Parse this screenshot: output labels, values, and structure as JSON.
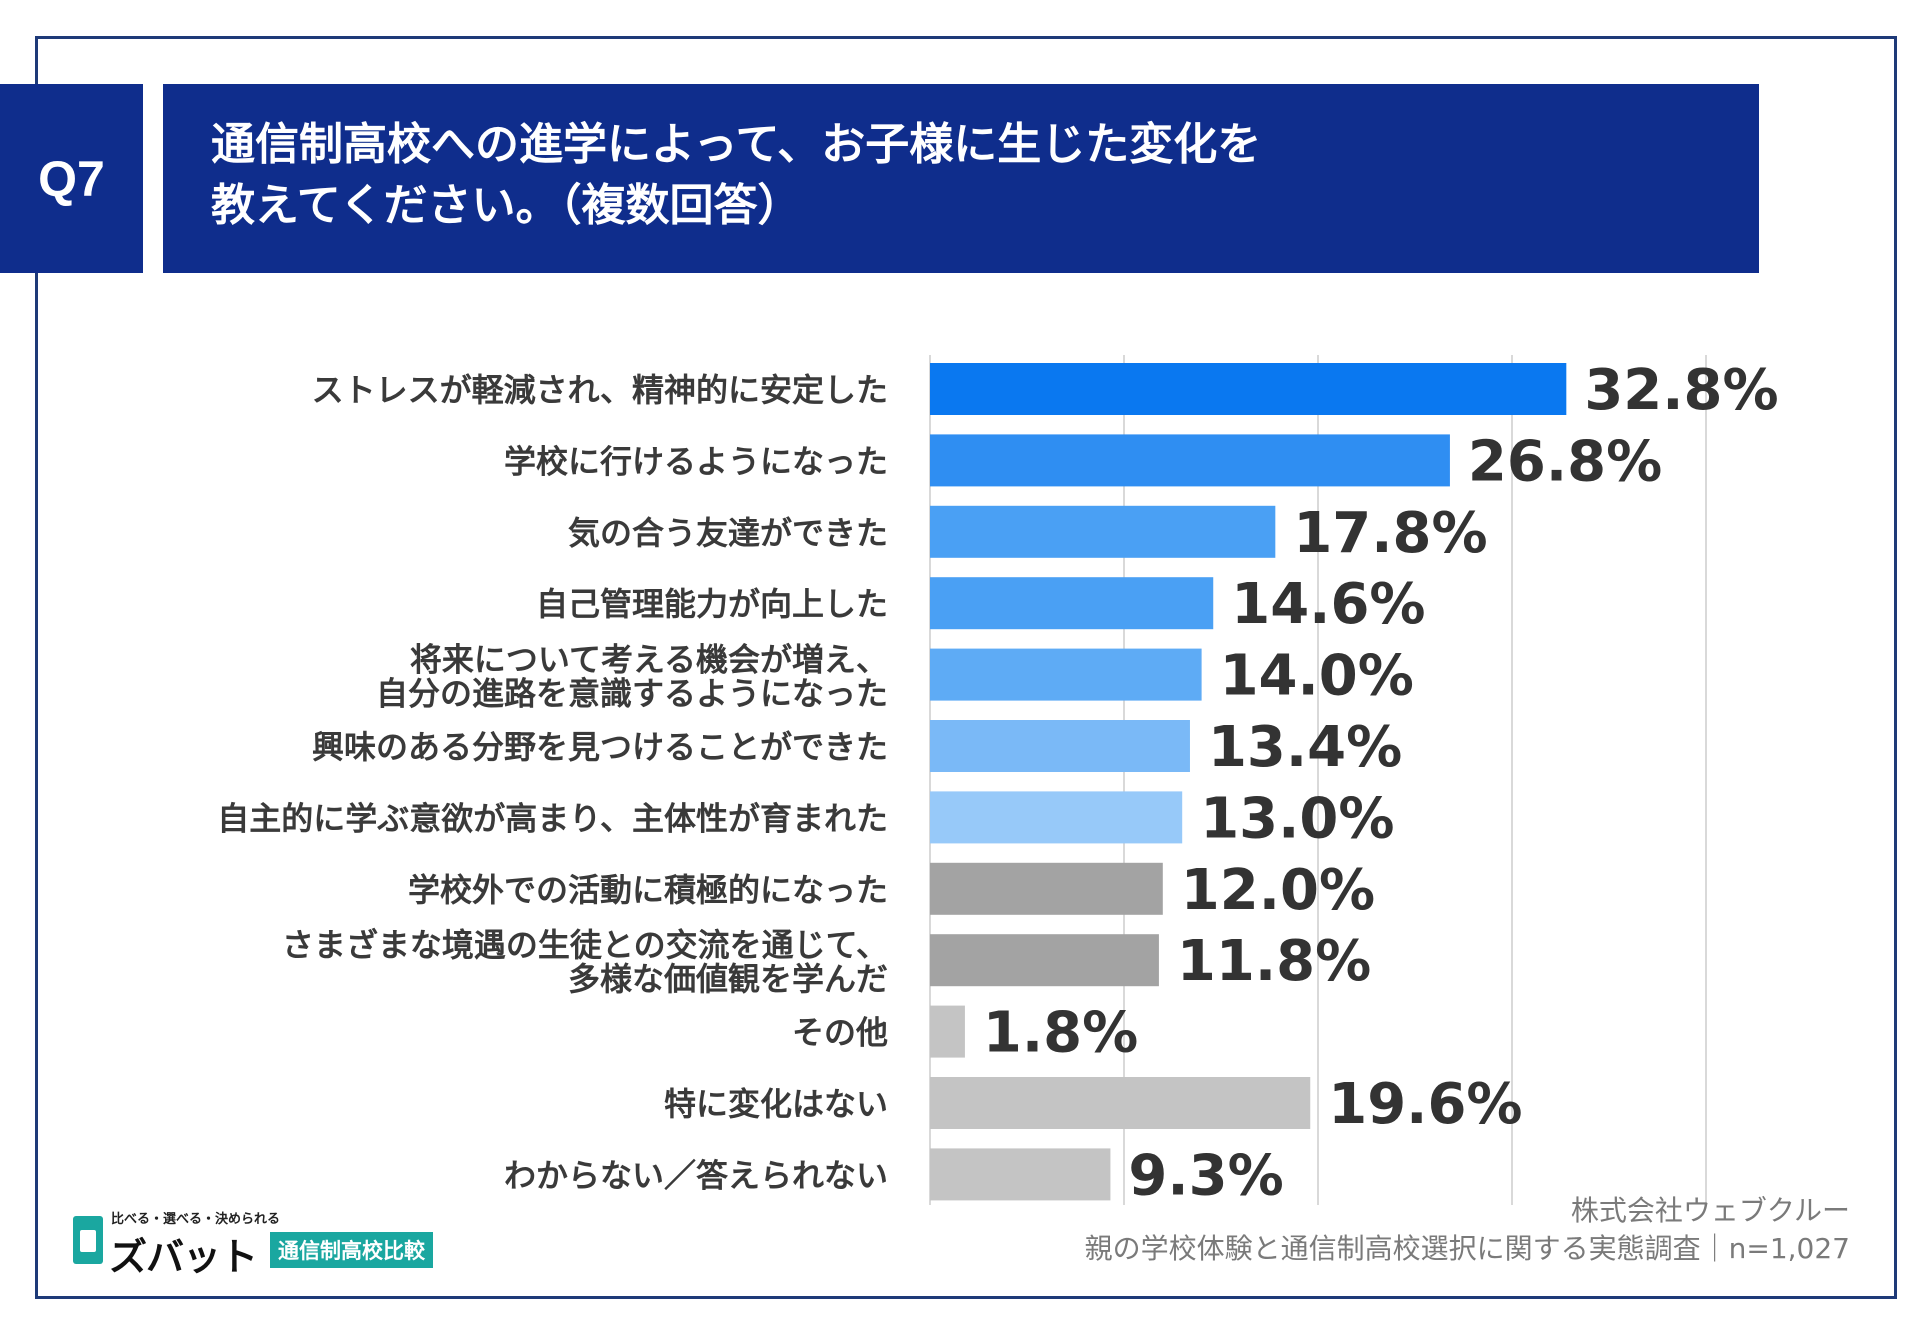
{
  "question": {
    "badge": "Q7",
    "title_line1": "通信制高校への進学によって、お子様に生じた変化を",
    "title_line2": "教えてください。（複数回答）"
  },
  "chart_data": {
    "type": "bar",
    "orientation": "horizontal",
    "title": "通信制高校への進学によって、お子様に生じた変化を教えてください。（複数回答）",
    "xlabel": "",
    "ylabel": "",
    "xlim": [
      0,
      40
    ],
    "grid": true,
    "unit": "%",
    "categories": [
      "ストレスが軽減され、精神的に安定した",
      "学校に行けるようになった",
      "気の合う友達ができた",
      "自己管理能力が向上した",
      "将来について考える機会が増え、自分の進路を意識するようになった",
      "興味のある分野を見つけることができた",
      "自主的に学ぶ意欲が高まり、主体性が育まれた",
      "学校外での活動に積極的になった",
      "さまざまな境遇の生徒との交流を通じて、多様な価値観を学んだ",
      "その他",
      "特に変化はない",
      "わからない／答えられない"
    ],
    "label_lines": [
      [
        "ストレスが軽減され、精神的に安定した"
      ],
      [
        "学校に行けるようになった"
      ],
      [
        "気の合う友達ができた"
      ],
      [
        "自己管理能力が向上した"
      ],
      [
        "将来について考える機会が増え、",
        "自分の進路を意識するようになった"
      ],
      [
        "興味のある分野を見つけることができた"
      ],
      [
        "自主的に学ぶ意欲が高まり、主体性が育まれた"
      ],
      [
        "学校外での活動に積極的になった"
      ],
      [
        "さまざまな境遇の生徒との交流を通じて、",
        "多様な価値観を学んだ"
      ],
      [
        "その他"
      ],
      [
        "特に変化はない"
      ],
      [
        "わからない／答えられない"
      ]
    ],
    "values": [
      32.8,
      26.8,
      17.8,
      14.6,
      14.0,
      13.4,
      13.0,
      12.0,
      11.8,
      1.8,
      19.6,
      9.3
    ],
    "value_labels": [
      "32.8%",
      "26.8%",
      "17.8%",
      "14.6%",
      "14.0%",
      "13.4%",
      "13.0%",
      "12.0%",
      "11.8%",
      "1.8%",
      "19.6%",
      "9.3%"
    ],
    "colors": [
      "#0a78f0",
      "#2f8ef2",
      "#4aa0f4",
      "#4aa0f4",
      "#5eabf5",
      "#7ab9f7",
      "#97c9f9",
      "#a3a3a3",
      "#a3a3a3",
      "#c4c4c4",
      "#c4c4c4",
      "#c4c4c4"
    ]
  },
  "branding": {
    "tagline": "比べる・選べる・決められる",
    "logo_text": "ズバット",
    "sub_label": "通信制高校比較"
  },
  "source": {
    "company": "株式会社ウェブクルー",
    "survey": "親の学校体験と通信制高校選択に関する実態調査｜n=1,027"
  }
}
